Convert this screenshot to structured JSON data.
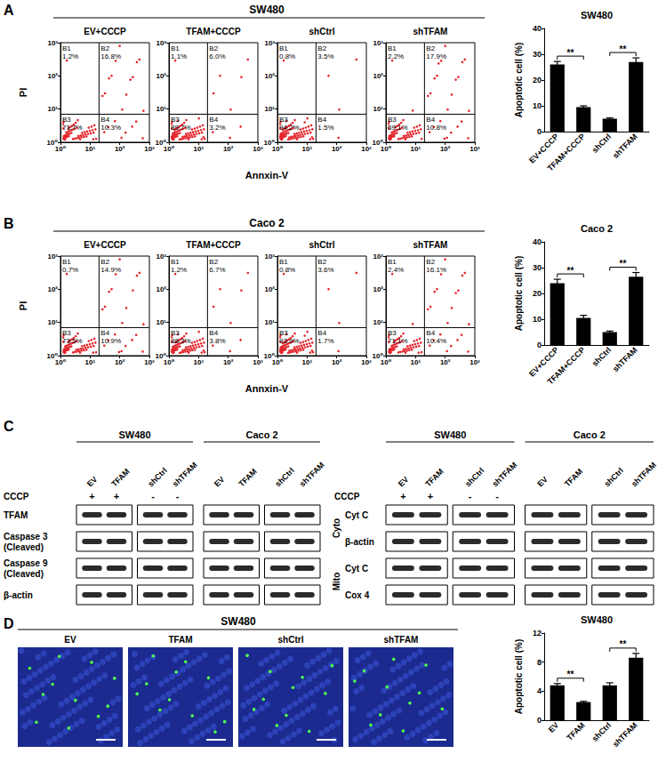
{
  "chart_data": [
    {
      "type": "quadrant",
      "panel": "A",
      "title": "EV+CCCP",
      "log": true,
      "xlim": [
        1,
        1000
      ],
      "ylim": [
        1,
        1000
      ],
      "xticks": [
        {
          "value": 1,
          "label": "10⁰"
        },
        {
          "value": 10,
          "label": "10¹"
        },
        {
          "value": 100,
          "label": "10²"
        },
        {
          "value": 1000,
          "label": "10³"
        }
      ],
      "yticks": [
        {
          "value": 1,
          "label": "10⁰"
        },
        {
          "value": 10,
          "label": "10¹"
        },
        {
          "value": 100,
          "label": "10²"
        },
        {
          "value": 1000,
          "label": "10³"
        }
      ],
      "gate": {
        "x": 20,
        "y": 7
      },
      "quadrants": [
        {
          "name": "B1",
          "value": 1.2,
          "value_label": "1.2%"
        },
        {
          "name": "B2",
          "value": 16.8,
          "value_label": "16.8%"
        },
        {
          "name": "B3",
          "value": 71.7,
          "value_label": "71.7%"
        },
        {
          "name": "B4",
          "value": 10.3,
          "value_label": "10.3%"
        }
      ],
      "color": "#e3242b"
    },
    {
      "type": "quadrant",
      "panel": "A",
      "title": "TFAM+CCCP",
      "log": true,
      "xlim": [
        1,
        1000
      ],
      "ylim": [
        1,
        1000
      ],
      "xticks": [
        {
          "value": 1,
          "label": "10⁰"
        },
        {
          "value": 10,
          "label": "10¹"
        },
        {
          "value": 100,
          "label": "10²"
        },
        {
          "value": 1000,
          "label": "10³"
        }
      ],
      "yticks": [
        {
          "value": 1,
          "label": "10⁰"
        },
        {
          "value": 10,
          "label": "10¹"
        },
        {
          "value": 100,
          "label": "10²"
        },
        {
          "value": 1000,
          "label": "10³"
        }
      ],
      "gate": {
        "x": 20,
        "y": 7
      },
      "quadrants": [
        {
          "name": "B1",
          "value": 1.1,
          "value_label": "1.1%"
        },
        {
          "name": "B2",
          "value": 6.0,
          "value_label": "6.0%"
        },
        {
          "name": "B3",
          "value": 89.7,
          "value_label": "89.7%"
        },
        {
          "name": "B4",
          "value": 3.2,
          "value_label": "3.2%"
        }
      ],
      "color": "#e3242b"
    },
    {
      "type": "quadrant",
      "panel": "A",
      "title": "shCtrl",
      "log": true,
      "xlim": [
        1,
        1000
      ],
      "ylim": [
        1,
        1000
      ],
      "xticks": [
        {
          "value": 1,
          "label": "10⁰"
        },
        {
          "value": 10,
          "label": "10¹"
        },
        {
          "value": 100,
          "label": "10²"
        },
        {
          "value": 1000,
          "label": "10³"
        }
      ],
      "yticks": [
        {
          "value": 1,
          "label": "10⁰"
        },
        {
          "value": 10,
          "label": "10¹"
        },
        {
          "value": 100,
          "label": "10²"
        },
        {
          "value": 1000,
          "label": "10³"
        }
      ],
      "gate": {
        "x": 20,
        "y": 7
      },
      "quadrants": [
        {
          "name": "B1",
          "value": 0.8,
          "value_label": "0.8%"
        },
        {
          "name": "B2",
          "value": 3.5,
          "value_label": "3.5%"
        },
        {
          "name": "B3",
          "value": 94.2,
          "value_label": "94.2%"
        },
        {
          "name": "B4",
          "value": 1.5,
          "value_label": "1.5%"
        }
      ],
      "color": "#e3242b"
    },
    {
      "type": "quadrant",
      "panel": "A",
      "title": "shTFAM",
      "log": true,
      "xlim": [
        1,
        1000
      ],
      "ylim": [
        1,
        1000
      ],
      "xticks": [
        {
          "value": 1,
          "label": "10⁰"
        },
        {
          "value": 10,
          "label": "10¹"
        },
        {
          "value": 100,
          "label": "10²"
        },
        {
          "value": 1000,
          "label": "10³"
        }
      ],
      "yticks": [
        {
          "value": 1,
          "label": "10⁰"
        },
        {
          "value": 10,
          "label": "10¹"
        },
        {
          "value": 100,
          "label": "10²"
        },
        {
          "value": 1000,
          "label": "10³"
        }
      ],
      "gate": {
        "x": 20,
        "y": 7
      },
      "quadrants": [
        {
          "name": "B1",
          "value": 2.2,
          "value_label": "2.2%"
        },
        {
          "name": "B2",
          "value": 17.9,
          "value_label": "17.9%"
        },
        {
          "name": "B3",
          "value": 69.1,
          "value_label": "69.1%"
        },
        {
          "name": "B4",
          "value": 10.8,
          "value_label": "10.8%"
        }
      ],
      "color": "#e3242b"
    },
    {
      "type": "bar",
      "panel": "A",
      "title": "SW480",
      "ylabel": "Apoptotic cell (%)",
      "categories": [
        "EV+CCCP",
        "TFAM+CCCP",
        "shCtrl",
        "shTFAM"
      ],
      "values": [
        26,
        9.5,
        5,
        27
      ],
      "errors": [
        1.2,
        0.5,
        0.3,
        1.6
      ],
      "ylim": [
        0,
        40
      ],
      "yticks": [
        0,
        10,
        20,
        30,
        40
      ],
      "color": "#000000",
      "significance": [
        {
          "pair": [
            0,
            1
          ],
          "label": "**"
        },
        {
          "pair": [
            2,
            3
          ],
          "label": "**"
        }
      ]
    },
    {
      "type": "quadrant",
      "panel": "B",
      "title": "EV+CCCP",
      "log": true,
      "xlim": [
        1,
        1000
      ],
      "ylim": [
        1,
        1000
      ],
      "xticks": [
        {
          "value": 1,
          "label": "10⁰"
        },
        {
          "value": 10,
          "label": "10¹"
        },
        {
          "value": 100,
          "label": "10²"
        },
        {
          "value": 1000,
          "label": "10³"
        }
      ],
      "yticks": [
        {
          "value": 1,
          "label": "10⁰"
        },
        {
          "value": 10,
          "label": "10¹"
        },
        {
          "value": 100,
          "label": "10²"
        },
        {
          "value": 1000,
          "label": "10³"
        }
      ],
      "gate": {
        "x": 20,
        "y": 7
      },
      "quadrants": [
        {
          "name": "B1",
          "value": 0.7,
          "value_label": "0.7%"
        },
        {
          "name": "B2",
          "value": 14.9,
          "value_label": "14.9%"
        },
        {
          "name": "B3",
          "value": 73.5,
          "value_label": "73.5%"
        },
        {
          "name": "B4",
          "value": 10.9,
          "value_label": "10.9%"
        }
      ],
      "color": "#e3242b"
    },
    {
      "type": "quadrant",
      "panel": "B",
      "title": "TFAM+CCCP",
      "log": true,
      "xlim": [
        1,
        1000
      ],
      "ylim": [
        1,
        1000
      ],
      "xticks": [
        {
          "value": 1,
          "label": "10⁰"
        },
        {
          "value": 10,
          "label": "10¹"
        },
        {
          "value": 100,
          "label": "10²"
        },
        {
          "value": 1000,
          "label": "10³"
        }
      ],
      "yticks": [
        {
          "value": 1,
          "label": "10⁰"
        },
        {
          "value": 10,
          "label": "10¹"
        },
        {
          "value": 100,
          "label": "10²"
        },
        {
          "value": 1000,
          "label": "10³"
        }
      ],
      "gate": {
        "x": 20,
        "y": 7
      },
      "quadrants": [
        {
          "name": "B1",
          "value": 1.2,
          "value_label": "1.2%"
        },
        {
          "name": "B2",
          "value": 6.7,
          "value_label": "6.7%"
        },
        {
          "name": "B3",
          "value": 88.3,
          "value_label": "88.3%"
        },
        {
          "name": "B4",
          "value": 3.8,
          "value_label": "3.8%"
        }
      ],
      "color": "#e3242b"
    },
    {
      "type": "quadrant",
      "panel": "B",
      "title": "shCtrl",
      "log": true,
      "xlim": [
        1,
        1000
      ],
      "ylim": [
        1,
        1000
      ],
      "xticks": [
        {
          "value": 1,
          "label": "10⁰"
        },
        {
          "value": 10,
          "label": "10¹"
        },
        {
          "value": 100,
          "label": "10²"
        },
        {
          "value": 1000,
          "label": "10³"
        }
      ],
      "yticks": [
        {
          "value": 1,
          "label": "10⁰"
        },
        {
          "value": 10,
          "label": "10¹"
        },
        {
          "value": 100,
          "label": "10²"
        },
        {
          "value": 1000,
          "label": "10³"
        }
      ],
      "gate": {
        "x": 20,
        "y": 7
      },
      "quadrants": [
        {
          "name": "B1",
          "value": 0.8,
          "value_label": "0.8%"
        },
        {
          "name": "B2",
          "value": 3.6,
          "value_label": "3.6%"
        },
        {
          "name": "B3",
          "value": 93.9,
          "value_label": "93.9%"
        },
        {
          "name": "B4",
          "value": 1.7,
          "value_label": "1.7%"
        }
      ],
      "color": "#e3242b"
    },
    {
      "type": "quadrant",
      "panel": "B",
      "title": "shTFAM",
      "log": true,
      "xlim": [
        1,
        1000
      ],
      "ylim": [
        1,
        1000
      ],
      "xticks": [
        {
          "value": 1,
          "label": "10⁰"
        },
        {
          "value": 10,
          "label": "10¹"
        },
        {
          "value": 100,
          "label": "10²"
        },
        {
          "value": 1000,
          "label": "10³"
        }
      ],
      "yticks": [
        {
          "value": 1,
          "label": "10⁰"
        },
        {
          "value": 10,
          "label": "10¹"
        },
        {
          "value": 100,
          "label": "10²"
        },
        {
          "value": 1000,
          "label": "10³"
        }
      ],
      "gate": {
        "x": 20,
        "y": 7
      },
      "quadrants": [
        {
          "name": "B1",
          "value": 2.4,
          "value_label": "2.4%"
        },
        {
          "name": "B2",
          "value": 16.1,
          "value_label": "16.1%"
        },
        {
          "name": "B3",
          "value": 71.1,
          "value_label": "71.1%"
        },
        {
          "name": "B4",
          "value": 10.4,
          "value_label": "10.4%"
        }
      ],
      "color": "#e3242b"
    },
    {
      "type": "bar",
      "panel": "B",
      "title": "Caco 2",
      "ylabel": "Apoptotic cell (%)",
      "categories": [
        "EV+CCCP",
        "TFAM+CCCP",
        "shCtrl",
        "shTFAM"
      ],
      "values": [
        24,
        10.5,
        5,
        26.5
      ],
      "errors": [
        1.5,
        1,
        0.4,
        1.6
      ],
      "ylim": [
        0,
        40
      ],
      "yticks": [
        0,
        10,
        20,
        30,
        40
      ],
      "color": "#000000",
      "significance": [
        {
          "pair": [
            0,
            1
          ],
          "label": "**"
        },
        {
          "pair": [
            2,
            3
          ],
          "label": "**"
        }
      ]
    },
    {
      "type": "bar",
      "panel": "D",
      "title": "SW480",
      "ylabel": "Apoptotic cell (%)",
      "categories": [
        "EV",
        "TFAM",
        "shCtrl",
        "shTFAM"
      ],
      "values": [
        4.8,
        2.5,
        4.8,
        8.6
      ],
      "errors": [
        0.25,
        0.1,
        0.35,
        0.6
      ],
      "ylim": [
        0,
        12
      ],
      "yticks": [
        0,
        4,
        8,
        12
      ],
      "color": "#000000",
      "significance": [
        {
          "pair": [
            0,
            1
          ],
          "label": "**"
        },
        {
          "pair": [
            2,
            3
          ],
          "label": "**"
        }
      ]
    }
  ],
  "figure": {
    "panels": [
      {
        "label": "A",
        "title": "SW480",
        "xlabel": "Annxin-V",
        "ylabel": "PI"
      },
      {
        "label": "B",
        "title": "Caco 2",
        "xlabel": "Annxin-V",
        "ylabel": "PI"
      },
      {
        "label": "C",
        "blots": [
          {
            "treatment": "CCCP",
            "groups": [
              {
                "title": "SW480",
                "lanes": [
                  "EV",
                  "TFAM",
                  "shCtrl",
                  "shTFAM"
                ],
                "signs": [
                  "+",
                  "+",
                  "-",
                  "-"
                ]
              },
              {
                "title": "Caco 2",
                "lanes": [
                  "EV",
                  "TFAM",
                  "shCtrl",
                  "shTFAM"
                ]
              }
            ],
            "sections": [
              {
                "rows": [
                  "TFAM",
                  "Caspase 3\n(Cleaved)",
                  "Caspase 9\n(Cleaved)",
                  "β-actin"
                ]
              }
            ]
          },
          {
            "treatment": "CCCP",
            "groups": [
              {
                "title": "SW480",
                "lanes": [
                  "EV",
                  "TFAM",
                  "shCtrl",
                  "shTFAM"
                ],
                "signs": [
                  "+",
                  "+",
                  "-",
                  "-"
                ]
              },
              {
                "title": "Caco 2",
                "lanes": [
                  "EV",
                  "TFAM",
                  "shCtrl",
                  "shTFAM"
                ]
              }
            ],
            "sections": [
              {
                "label": "Cyto",
                "rows": [
                  "Cyt C",
                  "β-actin"
                ]
              },
              {
                "label": "Mito",
                "rows": [
                  "Cyt C",
                  "Cox 4"
                ]
              }
            ]
          }
        ]
      },
      {
        "label": "D",
        "title": "SW480",
        "images": [
          "EV",
          "TFAM",
          "shCtrl",
          "shTFAM"
        ]
      }
    ]
  }
}
